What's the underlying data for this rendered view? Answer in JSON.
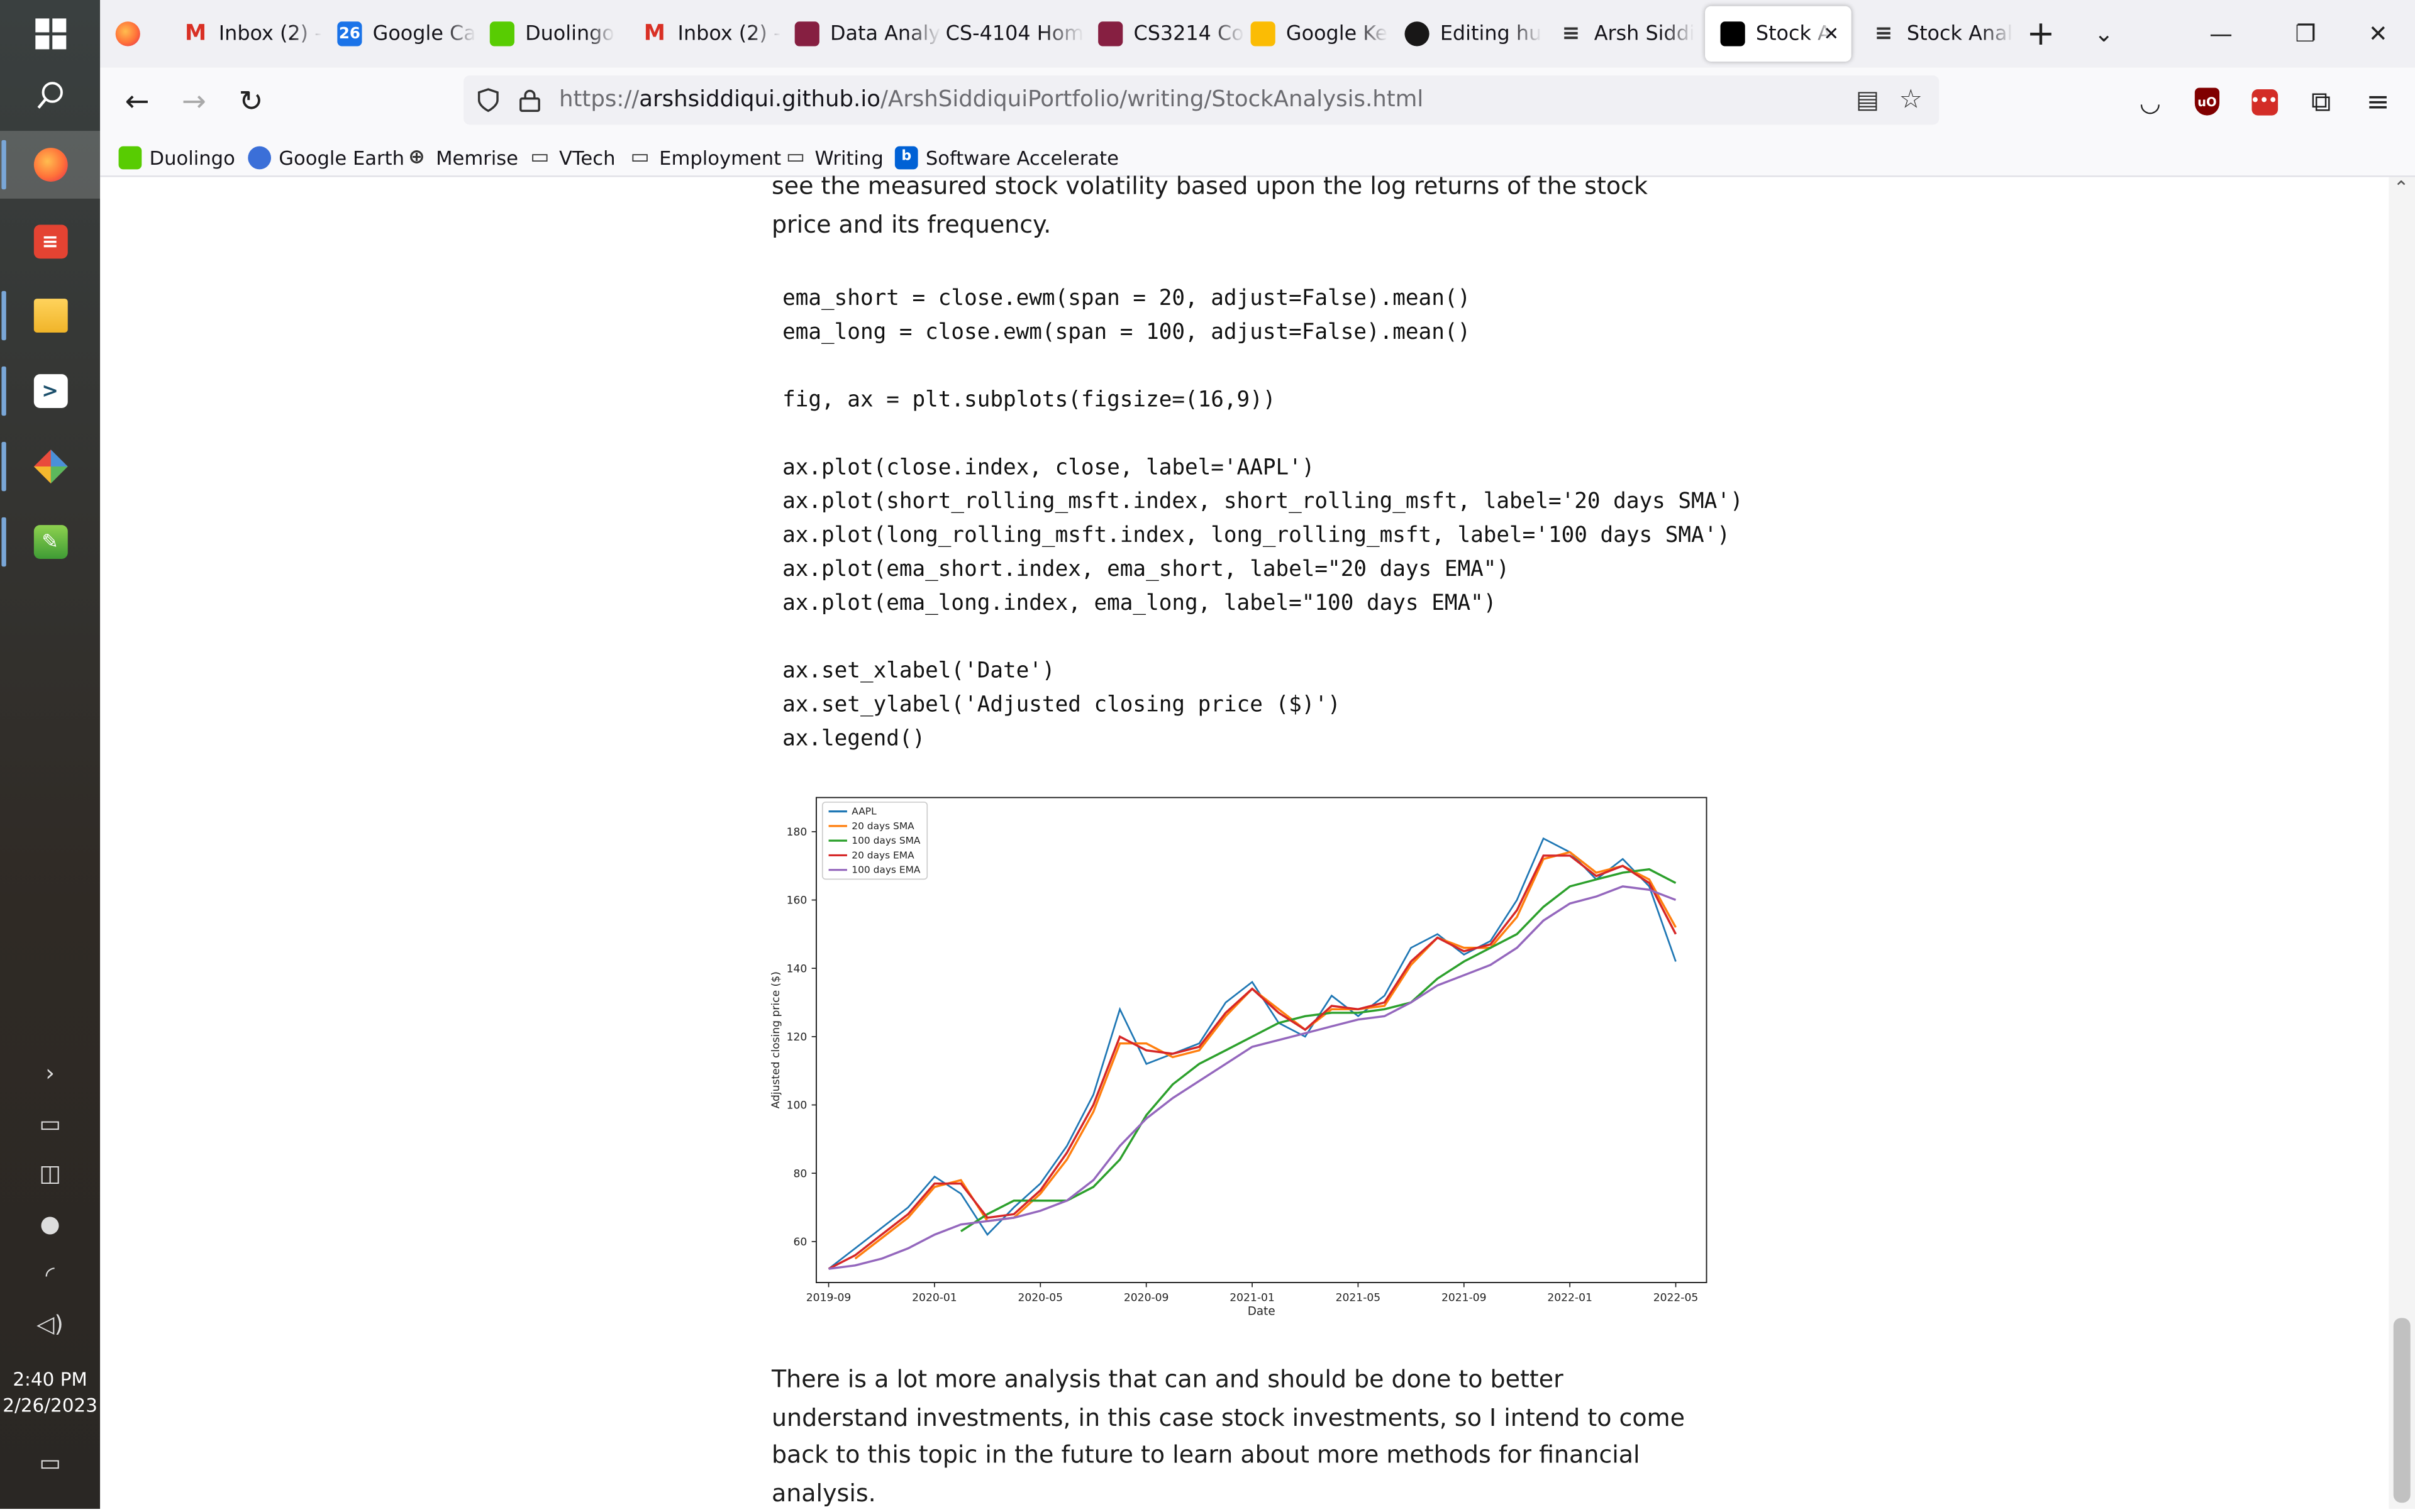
{
  "taskbar": {
    "clock_time": "2:40 PM",
    "clock_date": "2/26/2023"
  },
  "tabs": [
    {
      "title": "",
      "icon": "firefox-icon",
      "color": "#ff7139"
    },
    {
      "title": "Inbox (2) -",
      "icon": "gmail-icon",
      "color": "#d93025"
    },
    {
      "title": "Google Ca",
      "icon": "calendar-icon",
      "color": "#1a73e8",
      "glyph": "26"
    },
    {
      "title": "Duolingo",
      "icon": "duolingo-icon",
      "color": "#58cc02"
    },
    {
      "title": "Inbox (2) -",
      "icon": "gmail-icon",
      "color": "#d93025"
    },
    {
      "title": "Data Analy",
      "icon": "vt-icon",
      "color": "#861f41"
    },
    {
      "title": "CS-4104 Hom",
      "icon": "",
      "color": ""
    },
    {
      "title": "CS3214 Co",
      "icon": "vt-shield-icon",
      "color": "#861f41"
    },
    {
      "title": "Google Ke",
      "icon": "keep-icon",
      "color": "#fbbc04"
    },
    {
      "title": "Editing hu",
      "icon": "github-icon",
      "color": "#181717"
    },
    {
      "title": "Arsh Siddi",
      "icon": "page-icon",
      "color": "#444"
    },
    {
      "title": "Stock A",
      "icon": "black-square-icon",
      "color": "#000"
    },
    {
      "title": "Stock Anal",
      "icon": "page-icon",
      "color": "#444"
    }
  ],
  "url": {
    "prefix": "https://",
    "domain": "arshsiddiqui.github.io",
    "path": "/ArshSiddiquiPortfolio/writing/StockAnalysis.html"
  },
  "bookmarks": [
    {
      "label": "Duolingo",
      "icon": "duolingo-icon",
      "color": "#58cc02"
    },
    {
      "label": "Google Earth",
      "icon": "earth-icon",
      "color": "#3b6fd8"
    },
    {
      "label": "Memrise",
      "icon": "globe-icon",
      "color": ""
    },
    {
      "label": "VTech",
      "icon": "folder-icon",
      "color": ""
    },
    {
      "label": "Employment",
      "icon": "folder-icon",
      "color": ""
    },
    {
      "label": "Writing",
      "icon": "folder-icon",
      "color": ""
    },
    {
      "label": "Software Accelerate",
      "icon": "box-icon",
      "color": "#0061d5"
    }
  ],
  "article": {
    "intro": "see the measured stock volatility based upon the log returns of the stock price and its frequency.",
    "code": "ema_short = close.ewm(span = 20, adjust=False).mean()\nema_long = close.ewm(span = 100, adjust=False).mean()\n\nfig, ax = plt.subplots(figsize=(16,9))\n\nax.plot(close.index, close, label='AAPL')\nax.plot(short_rolling_msft.index, short_rolling_msft, label='20 days SMA')\nax.plot(long_rolling_msft.index, long_rolling_msft, label='100 days SMA')\nax.plot(ema_short.index, ema_short, label=\"20 days EMA\")\nax.plot(ema_long.index, ema_long, label=\"100 days EMA\")\n\nax.set_xlabel('Date')\nax.set_ylabel('Adjusted closing price ($)')\nax.legend()",
    "outro": "There is a lot more analysis that can and should be done to better understand investments, in this case stock investments, so I intend to come back to this topic in the future to learn about more methods for financial analysis."
  },
  "chart_data": {
    "type": "line",
    "xlabel": "Date",
    "ylabel": "Adjusted closing price ($)",
    "x": [
      "2019-09",
      "2019-10",
      "2019-11",
      "2019-12",
      "2020-01",
      "2020-02",
      "2020-03",
      "2020-04",
      "2020-05",
      "2020-06",
      "2020-07",
      "2020-08",
      "2020-09",
      "2020-10",
      "2020-11",
      "2020-12",
      "2021-01",
      "2021-02",
      "2021-03",
      "2021-04",
      "2021-05",
      "2021-06",
      "2021-07",
      "2021-08",
      "2021-09",
      "2021-10",
      "2021-11",
      "2021-12",
      "2022-01",
      "2022-02",
      "2022-03",
      "2022-04",
      "2022-05"
    ],
    "xticks": [
      "2019-09",
      "2020-01",
      "2020-05",
      "2020-09",
      "2021-01",
      "2021-05",
      "2021-09",
      "2022-01",
      "2022-05"
    ],
    "yticks": [
      60,
      80,
      100,
      120,
      140,
      160,
      180
    ],
    "ylim": [
      48,
      190
    ],
    "legend": "top-left",
    "series": [
      {
        "name": "AAPL",
        "color": "#1f77b4",
        "values": [
          52,
          58,
          64,
          70,
          79,
          74,
          62,
          70,
          77,
          88,
          103,
          128,
          112,
          115,
          118,
          130,
          136,
          124,
          120,
          132,
          126,
          132,
          146,
          150,
          144,
          148,
          160,
          178,
          174,
          166,
          172,
          164,
          142
        ]
      },
      {
        "name": "20 days SMA",
        "color": "#ff7f0e",
        "values": [
          null,
          55,
          61,
          67,
          76,
          78,
          66,
          67,
          74,
          84,
          98,
          118,
          118,
          114,
          116,
          126,
          134,
          128,
          122,
          128,
          128,
          129,
          141,
          149,
          146,
          146,
          155,
          172,
          174,
          168,
          170,
          166,
          152
        ]
      },
      {
        "name": "100 days SMA",
        "color": "#2ca02c",
        "values": [
          null,
          null,
          null,
          null,
          null,
          63,
          68,
          72,
          72,
          72,
          76,
          84,
          97,
          106,
          112,
          116,
          120,
          124,
          126,
          127,
          127,
          128,
          130,
          137,
          142,
          146,
          150,
          158,
          164,
          166,
          168,
          169,
          165
        ]
      },
      {
        "name": "20 days EMA",
        "color": "#d62728",
        "values": [
          52,
          56,
          62,
          68,
          77,
          77,
          67,
          68,
          75,
          86,
          100,
          120,
          116,
          115,
          117,
          127,
          134,
          127,
          122,
          129,
          128,
          130,
          142,
          149,
          145,
          147,
          157,
          173,
          173,
          167,
          170,
          165,
          150
        ]
      },
      {
        "name": "100 days EMA",
        "color": "#9467bd",
        "values": [
          52,
          53,
          55,
          58,
          62,
          65,
          66,
          67,
          69,
          72,
          78,
          88,
          96,
          102,
          107,
          112,
          117,
          119,
          121,
          123,
          125,
          126,
          130,
          135,
          138,
          141,
          146,
          154,
          159,
          161,
          164,
          163,
          160
        ]
      }
    ]
  }
}
